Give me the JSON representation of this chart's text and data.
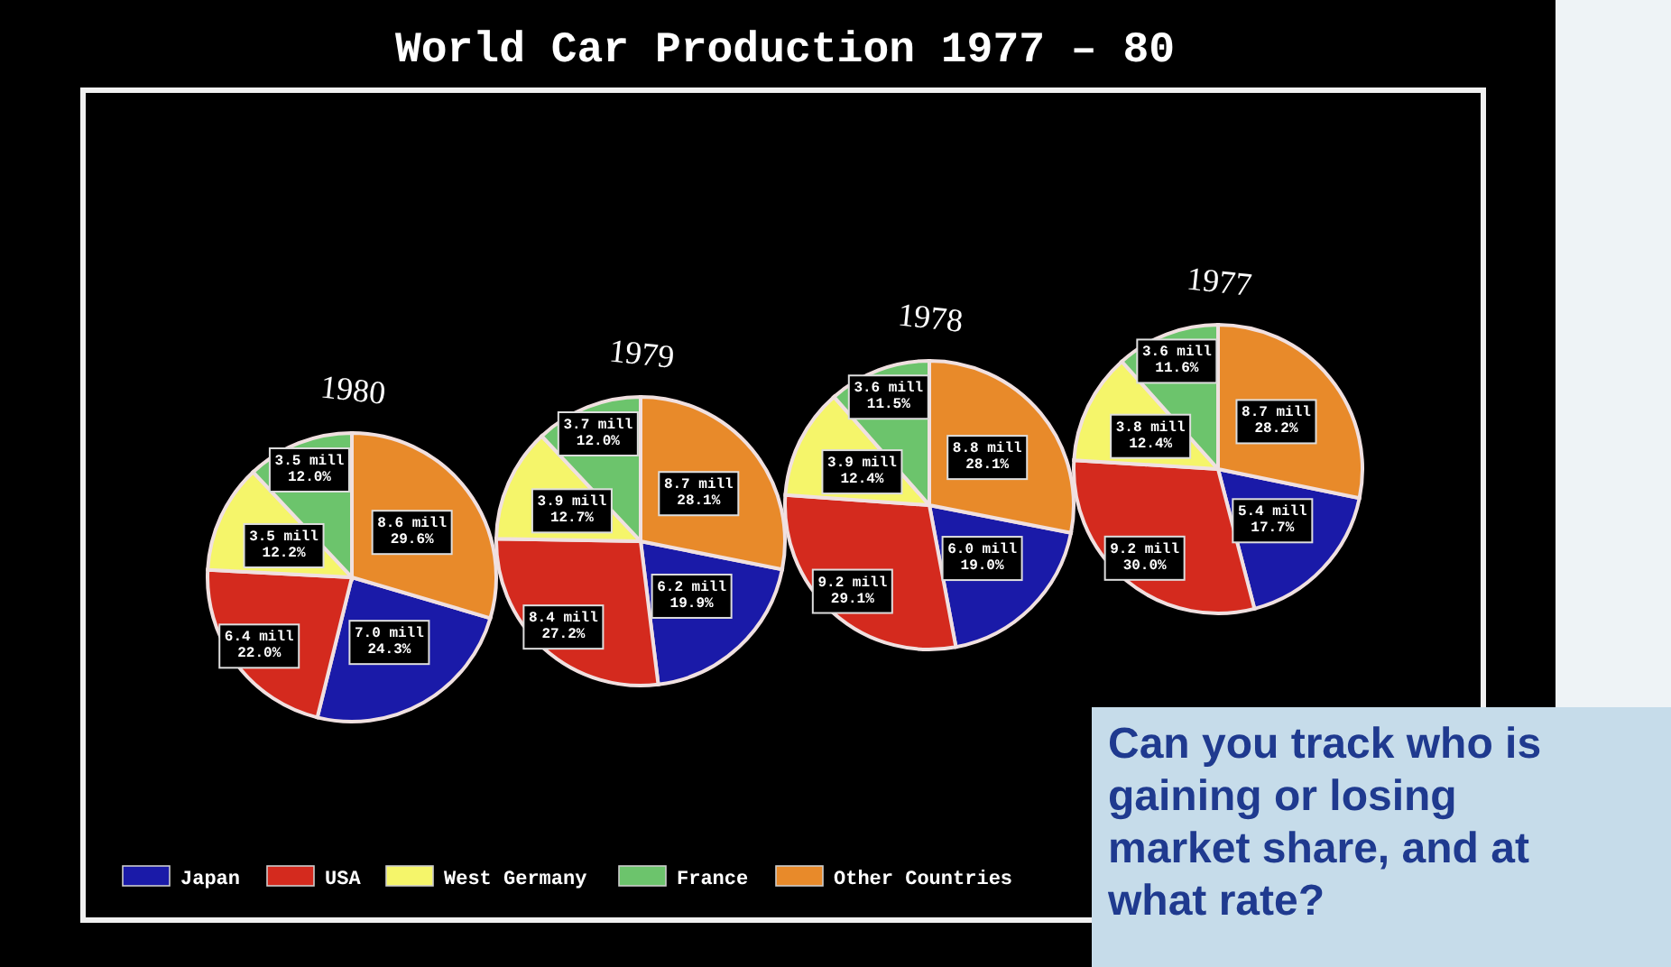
{
  "chart_data": [
    {
      "type": "pie",
      "title": "World Car Production 1977 – 80",
      "subtitle": "1980",
      "categories": [
        "Japan",
        "USA",
        "West Germany",
        "France",
        "Other Countries"
      ],
      "colors": [
        "#1a1aa8",
        "#d42a1e",
        "#f5f56a",
        "#6cc46c",
        "#e88a2a"
      ],
      "values": [
        24.3,
        22.0,
        12.2,
        12.0,
        29.6
      ],
      "value_labels": [
        "7.0 mill\n24.3%",
        "6.4 mill\n22.0%",
        "3.5 mill\n12.2%",
        "3.5 mill\n12.0%",
        "8.6 mill\n29.6%"
      ],
      "legend": "bottom"
    },
    {
      "type": "pie",
      "subtitle": "1979",
      "categories": [
        null,
        null,
        null,
        null,
        null
      ],
      "colors": [
        "#1a1aa8",
        "#d42a1e",
        "#f5f56a",
        "#6cc46c",
        "#e88a2a"
      ],
      "values": [
        19.9,
        27.2,
        12.7,
        12.0,
        28.1
      ],
      "value_labels": [
        "6.2 mill\n19.9%",
        "8.4 mill\n27.2%",
        "3.9 mill\n12.7%",
        "3.7 mill\n12.0%",
        "8.7 mill\n28.1%"
      ]
    },
    {
      "type": "pie",
      "subtitle": "1978",
      "categories": [
        null,
        null,
        null,
        null,
        null
      ],
      "colors": [
        "#1a1aa8",
        "#d42a1e",
        "#f5f56a",
        "#6cc46c",
        "#e88a2a"
      ],
      "values": [
        19.0,
        29.1,
        12.4,
        11.5,
        28.1
      ],
      "value_labels": [
        "6.0 mill\n19.0%",
        "9.2 mill\n29.1%",
        "3.9 mill\n12.4%",
        "3.6 mill\n11.5%",
        "8.8 mill\n28.1%"
      ]
    },
    {
      "type": "pie",
      "subtitle": "1977",
      "categories": [
        null,
        null,
        null,
        null,
        null
      ],
      "colors": [
        "#1a1aa8",
        "#d42a1e",
        "#f5f56a",
        "#6cc46c",
        "#e88a2a"
      ],
      "values": [
        17.7,
        30.0,
        12.4,
        11.6,
        28.2
      ],
      "value_labels": [
        "5.4 mill\n17.7%",
        "9.2 mill\n30.0%",
        "3.8 mill\n12.4%",
        "3.6 mill\n11.6%",
        "8.7 mill\n28.2%"
      ],
      "annotations": [
        "Can you track who is gaining or losing market share, and at what rate?"
      ]
    }
  ]
}
